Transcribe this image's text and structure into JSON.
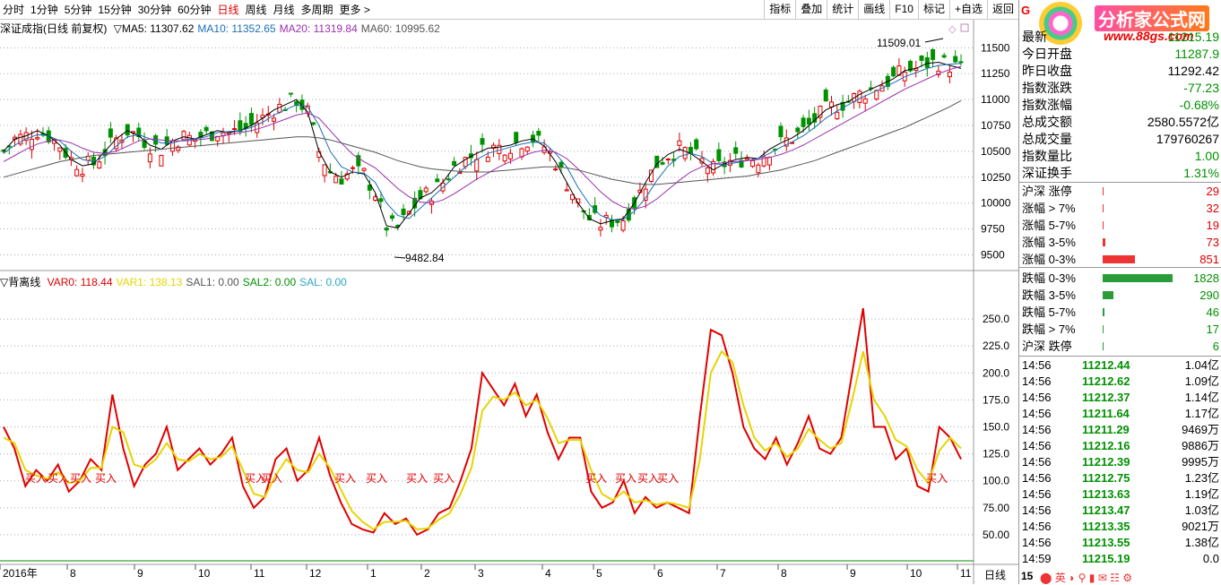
{
  "toolbar": {
    "periods": [
      "分时",
      "1分钟",
      "5分钟",
      "15分钟",
      "30分钟",
      "60分钟",
      "日线",
      "周线",
      "月线",
      "多周期",
      "更多 >"
    ],
    "active_period": "日线",
    "tools": [
      "指标",
      "叠加",
      "统计",
      "画线",
      "F10",
      "标记",
      "+自选",
      "返回"
    ]
  },
  "main_legend": {
    "title": "深证成指(日线 前复权)",
    "items": [
      {
        "label": "▽MA5: 11307.62",
        "color": "#000000"
      },
      {
        "label": "MA10: 11352.65",
        "color": "#1a6fb8"
      },
      {
        "label": "MA20: 11319.84",
        "color": "#9b2fae"
      },
      {
        "label": "MA60: 10995.62",
        "color": "#555555"
      }
    ]
  },
  "sub_legend": {
    "title": "▽背离线",
    "items": [
      {
        "label": "VAR0: 118.44",
        "color": "#e00000"
      },
      {
        "label": "VAR1: 138.13",
        "color": "#e6d400"
      },
      {
        "label": "SAL1: 0.00",
        "color": "#555555"
      },
      {
        "label": "SAL2: 0.00",
        "color": "#009100"
      },
      {
        "label": "SAL: 0.00",
        "color": "#2fa5c9"
      }
    ]
  },
  "chart_data": [
    {
      "type": "candlestick",
      "title": "深证成指(日线 前复权)",
      "y_ticks": [
        "11500",
        "11250",
        "11000",
        "10750",
        "10500",
        "10250",
        "10000",
        "9750",
        "9500"
      ],
      "ylim": [
        9400,
        11650
      ],
      "annotations": [
        {
          "text": "11509.01",
          "kind": "high"
        },
        {
          "text": "9482.84",
          "kind": "low"
        }
      ],
      "series": [
        {
          "name": "MA5",
          "color": "#000000",
          "values": [
            10500,
            10620,
            10650,
            10700,
            10650,
            10560,
            10420,
            10360,
            10380,
            10500,
            10620,
            10700,
            10650,
            10560,
            10520,
            10600,
            10640,
            10620,
            10660,
            10700,
            10680,
            10700,
            10750,
            10820,
            10900,
            10950,
            11000,
            10880,
            10500,
            10300,
            10250,
            10300,
            10280,
            10100,
            9780,
            9760,
            9900,
            10050,
            10100,
            10200,
            10350,
            10420,
            10480,
            10530,
            10540,
            10560,
            10600,
            10620,
            10550,
            10400,
            10200,
            10000,
            9850,
            9800,
            9830,
            9850,
            10000,
            10200,
            10380,
            10470,
            10520,
            10480,
            10400,
            10320,
            10380,
            10420,
            10440,
            10430,
            10520,
            10580,
            10630,
            10700,
            10800,
            10900,
            10950,
            10980,
            11050,
            11100,
            11150,
            11200,
            11280,
            11300,
            11350,
            11360,
            11330,
            11300
          ]
        },
        {
          "name": "MA10",
          "color": "#1a6fb8",
          "values": [
            10480,
            10560,
            10620,
            10660,
            10650,
            10600,
            10500,
            10420,
            10400,
            10450,
            10550,
            10640,
            10660,
            10620,
            10580,
            10580,
            10610,
            10620,
            10640,
            10680,
            10690,
            10700,
            10730,
            10780,
            10850,
            10900,
            10950,
            10930,
            10750,
            10500,
            10350,
            10300,
            10290,
            10200,
            10000,
            9880,
            9850,
            9950,
            10050,
            10150,
            10250,
            10350,
            10420,
            10480,
            10510,
            10540,
            10570,
            10590,
            10580,
            10480,
            10350,
            10150,
            9990,
            9880,
            9840,
            9840,
            9920,
            10050,
            10220,
            10360,
            10450,
            10480,
            10450,
            10380,
            10370,
            10390,
            10410,
            10430,
            10480,
            10540,
            10590,
            10650,
            10730,
            10820,
            10890,
            10950,
            11010,
            11060,
            11110,
            11160,
            11220,
            11260,
            11300,
            11330,
            11340,
            11350
          ]
        },
        {
          "name": "MA20",
          "color": "#9b2fae",
          "values": [
            10400,
            10460,
            10520,
            10570,
            10600,
            10610,
            10580,
            10530,
            10490,
            10480,
            10500,
            10550,
            10600,
            10620,
            10610,
            10600,
            10600,
            10610,
            10620,
            10640,
            10660,
            10680,
            10700,
            10730,
            10770,
            10810,
            10850,
            10870,
            10820,
            10700,
            10580,
            10470,
            10400,
            10340,
            10240,
            10140,
            10060,
            10010,
            10000,
            10030,
            10090,
            10160,
            10230,
            10290,
            10350,
            10400,
            10450,
            10490,
            10510,
            10490,
            10430,
            10330,
            10220,
            10110,
            10020,
            9960,
            9940,
            9970,
            10040,
            10130,
            10220,
            10300,
            10350,
            10380,
            10390,
            10400,
            10410,
            10420,
            10440,
            10470,
            10510,
            10560,
            10620,
            10680,
            10740,
            10800,
            10860,
            10920,
            10980,
            11040,
            11100,
            11150,
            11200,
            11250,
            11290,
            11320
          ]
        },
        {
          "name": "MA60",
          "color": "#555555",
          "values": [
            10250,
            10280,
            10310,
            10340,
            10370,
            10400,
            10420,
            10440,
            10460,
            10470,
            10480,
            10490,
            10500,
            10510,
            10520,
            10530,
            10540,
            10550,
            10560,
            10570,
            10580,
            10590,
            10600,
            10610,
            10620,
            10630,
            10640,
            10640,
            10630,
            10610,
            10580,
            10550,
            10520,
            10490,
            10450,
            10410,
            10380,
            10350,
            10330,
            10320,
            10310,
            10300,
            10300,
            10300,
            10310,
            10320,
            10330,
            10340,
            10350,
            10350,
            10340,
            10320,
            10290,
            10260,
            10230,
            10210,
            10190,
            10180,
            10180,
            10190,
            10200,
            10210,
            10220,
            10230,
            10240,
            10250,
            10260,
            10280,
            10300,
            10320,
            10350,
            10380,
            10410,
            10450,
            10490,
            10530,
            10570,
            10610,
            10650,
            10690,
            10730,
            10780,
            10830,
            10880,
            10930,
            10990
          ]
        }
      ]
    },
    {
      "type": "line",
      "title": "▽背离线",
      "y_ticks": [
        "250.0",
        "225.0",
        "200.0",
        "175.0",
        "150.0",
        "125.0",
        "100.0",
        "75.00",
        "50.00"
      ],
      "ylim": [
        25,
        280
      ],
      "x_ticks": [
        "2016年",
        "8",
        "9",
        "10",
        "11",
        "12",
        "1",
        "2",
        "3",
        "4",
        "5",
        "6",
        "7",
        "8",
        "9",
        "10",
        "11"
      ],
      "buy_label": "买入",
      "series": [
        {
          "name": "VAR0",
          "color": "#e00000",
          "values": [
            150,
            130,
            95,
            110,
            100,
            115,
            90,
            100,
            120,
            110,
            180,
            130,
            95,
            115,
            125,
            150,
            110,
            120,
            130,
            115,
            125,
            140,
            95,
            75,
            85,
            120,
            130,
            100,
            110,
            140,
            105,
            80,
            60,
            55,
            52,
            70,
            60,
            65,
            50,
            55,
            70,
            75,
            100,
            130,
            200,
            185,
            170,
            190,
            160,
            180,
            145,
            120,
            140,
            140,
            90,
            75,
            80,
            100,
            70,
            85,
            75,
            80,
            75,
            70,
            160,
            240,
            235,
            200,
            150,
            130,
            120,
            140,
            115,
            135,
            160,
            130,
            125,
            140,
            200,
            260,
            150,
            150,
            120,
            130,
            95,
            90,
            150,
            140,
            120
          ]
        },
        {
          "name": "VAR1",
          "color": "#e6d400",
          "values": [
            140,
            135,
            110,
            105,
            102,
            108,
            98,
            100,
            112,
            112,
            150,
            145,
            115,
            112,
            120,
            135,
            120,
            118,
            125,
            120,
            122,
            132,
            110,
            88,
            85,
            105,
            120,
            110,
            108,
            125,
            112,
            92,
            72,
            62,
            55,
            62,
            62,
            63,
            55,
            56,
            64,
            70,
            88,
            112,
            165,
            178,
            175,
            182,
            170,
            175,
            158,
            135,
            138,
            138,
            110,
            88,
            82,
            90,
            80,
            82,
            78,
            80,
            78,
            75,
            120,
            200,
            220,
            210,
            170,
            140,
            128,
            135,
            122,
            130,
            148,
            138,
            130,
            135,
            175,
            220,
            175,
            160,
            138,
            132,
            110,
            98,
            128,
            140,
            130
          ]
        }
      ]
    }
  ],
  "period_label": "日线",
  "panel": {
    "brand": {
      "g": "G",
      "text": "分析家公式网",
      "url": "www.88gs.com"
    },
    "quote": [
      {
        "label": "最新",
        "value": "11215.19",
        "color": "green"
      },
      {
        "label": "今日开盘",
        "value": "11287.9",
        "color": "green"
      },
      {
        "label": "昨日收盘",
        "value": "11292.42",
        "color": "black"
      },
      {
        "label": "指数涨跌",
        "value": "-77.23",
        "color": "green"
      },
      {
        "label": "指数涨幅",
        "value": "-0.68%",
        "color": "green"
      },
      {
        "label": "总成交额",
        "value": "2580.5572亿",
        "color": "black"
      },
      {
        "label": "总成交量",
        "value": "179760267",
        "color": "black"
      },
      {
        "label": "指数量比",
        "value": "1.00",
        "color": "green"
      },
      {
        "label": "深证换手",
        "value": "1.31%",
        "color": "green"
      }
    ],
    "breadth": [
      {
        "label": "沪深 涨停",
        "value": "29",
        "kind": "up",
        "count": 29
      },
      {
        "label": "涨幅 > 7%",
        "value": "32",
        "kind": "up",
        "count": 32
      },
      {
        "label": "涨幅 5-7%",
        "value": "19",
        "kind": "up",
        "count": 19
      },
      {
        "label": "涨幅 3-5%",
        "value": "73",
        "kind": "up",
        "count": 73
      },
      {
        "label": "涨幅 0-3%",
        "value": "851",
        "kind": "up",
        "count": 851
      },
      {
        "label": "跌幅 0-3%",
        "value": "1828",
        "kind": "down",
        "count": 1828
      },
      {
        "label": "跌幅 3-5%",
        "value": "290",
        "kind": "down",
        "count": 290
      },
      {
        "label": "跌幅 5-7%",
        "value": "46",
        "kind": "down",
        "count": 46
      },
      {
        "label": "跌幅 > 7%",
        "value": "17",
        "kind": "down",
        "count": 17
      },
      {
        "label": "沪深 跌停",
        "value": "6",
        "kind": "down",
        "count": 6
      }
    ],
    "ticks": [
      {
        "time": "14:56",
        "price": "11212.44",
        "vol": "1.04亿"
      },
      {
        "time": "14:56",
        "price": "11212.62",
        "vol": "1.09亿"
      },
      {
        "time": "14:56",
        "price": "11212.37",
        "vol": "1.14亿"
      },
      {
        "time": "14:56",
        "price": "11211.64",
        "vol": "1.17亿"
      },
      {
        "time": "14:56",
        "price": "11211.29",
        "vol": "9469万"
      },
      {
        "time": "14:56",
        "price": "11212.16",
        "vol": "9886万"
      },
      {
        "time": "14:56",
        "price": "11212.39",
        "vol": "9995万"
      },
      {
        "time": "14:56",
        "price": "11212.75",
        "vol": "1.23亿"
      },
      {
        "time": "14:56",
        "price": "11213.63",
        "vol": "1.19亿"
      },
      {
        "time": "14:56",
        "price": "11213.47",
        "vol": "1.03亿"
      },
      {
        "time": "14:56",
        "price": "11213.35",
        "vol": "9021万"
      },
      {
        "time": "14:56",
        "price": "11213.55",
        "vol": "1.38亿"
      },
      {
        "time": "14:59",
        "price": "11215.19",
        "vol": "0.0"
      }
    ],
    "status_text": "15"
  }
}
